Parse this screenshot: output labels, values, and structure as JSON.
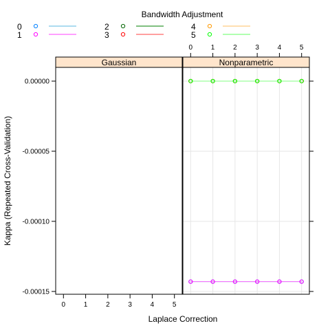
{
  "chart_data": {
    "type": "scatter",
    "legend": {
      "title": "Bandwidth Adjustment",
      "placement": "top",
      "entries": [
        {
          "label": "0",
          "point_color": "#0080ff",
          "line_color": "#7ac5e8"
        },
        {
          "label": "1",
          "point_color": "#ff00ff",
          "line_color": "#ff66ff"
        },
        {
          "label": "2",
          "point_color": "#006400",
          "line_color": "#339933"
        },
        {
          "label": "3",
          "point_color": "#ff0000",
          "line_color": "#ff6666"
        },
        {
          "label": "4",
          "point_color": "#ff9900",
          "line_color": "#ffcc80"
        },
        {
          "label": "5",
          "point_color": "#00ff00",
          "line_color": "#80ff80"
        }
      ]
    },
    "panels": [
      {
        "title": "Gaussian",
        "series": []
      },
      {
        "title": "Nonparametric",
        "series": [
          {
            "name": "0",
            "x": [
              0,
              1,
              2,
              3,
              4,
              5
            ],
            "y": [
              -0.000143,
              -0.000143,
              -0.000143,
              -0.000143,
              -0.000143,
              -0.000143
            ]
          },
          {
            "name": "1",
            "x": [
              0,
              1,
              2,
              3,
              4,
              5
            ],
            "y": [
              -0.000143,
              -0.000143,
              -0.000143,
              -0.000143,
              -0.000143,
              -0.000143
            ]
          },
          {
            "name": "2",
            "x": [
              0,
              1,
              2,
              3,
              4,
              5
            ],
            "y": [
              0,
              0,
              0,
              0,
              0,
              0
            ]
          },
          {
            "name": "3",
            "x": [
              0,
              1,
              2,
              3,
              4,
              5
            ],
            "y": [
              0,
              0,
              0,
              0,
              0,
              0
            ]
          },
          {
            "name": "4",
            "x": [
              0,
              1,
              2,
              3,
              4,
              5
            ],
            "y": [
              0,
              0,
              0,
              0,
              0,
              0
            ]
          },
          {
            "name": "5",
            "x": [
              0,
              1,
              2,
              3,
              4,
              5
            ],
            "y": [
              0,
              0,
              0,
              0,
              0,
              0
            ]
          }
        ]
      }
    ],
    "xlabel": "Laplace Correction",
    "ylabel": "Kappa (Repeated Cross-Validation)",
    "x_ticks": [
      "0",
      "1",
      "2",
      "3",
      "4",
      "5"
    ],
    "y_ticks": [
      {
        "value": 0,
        "label": "0.00000"
      },
      {
        "value": -5e-05,
        "label": "-0.00005"
      },
      {
        "value": -0.0001,
        "label": "-0.00010"
      },
      {
        "value": -0.00015,
        "label": "-0.00015"
      }
    ],
    "xlim": [
      -0.35,
      5.35
    ],
    "ylim": [
      -0.000152,
      9.8e-06
    ],
    "grid": true,
    "colors": {
      "strip_bg": "#ffe5cc",
      "grid": "#e6e6e6"
    }
  }
}
